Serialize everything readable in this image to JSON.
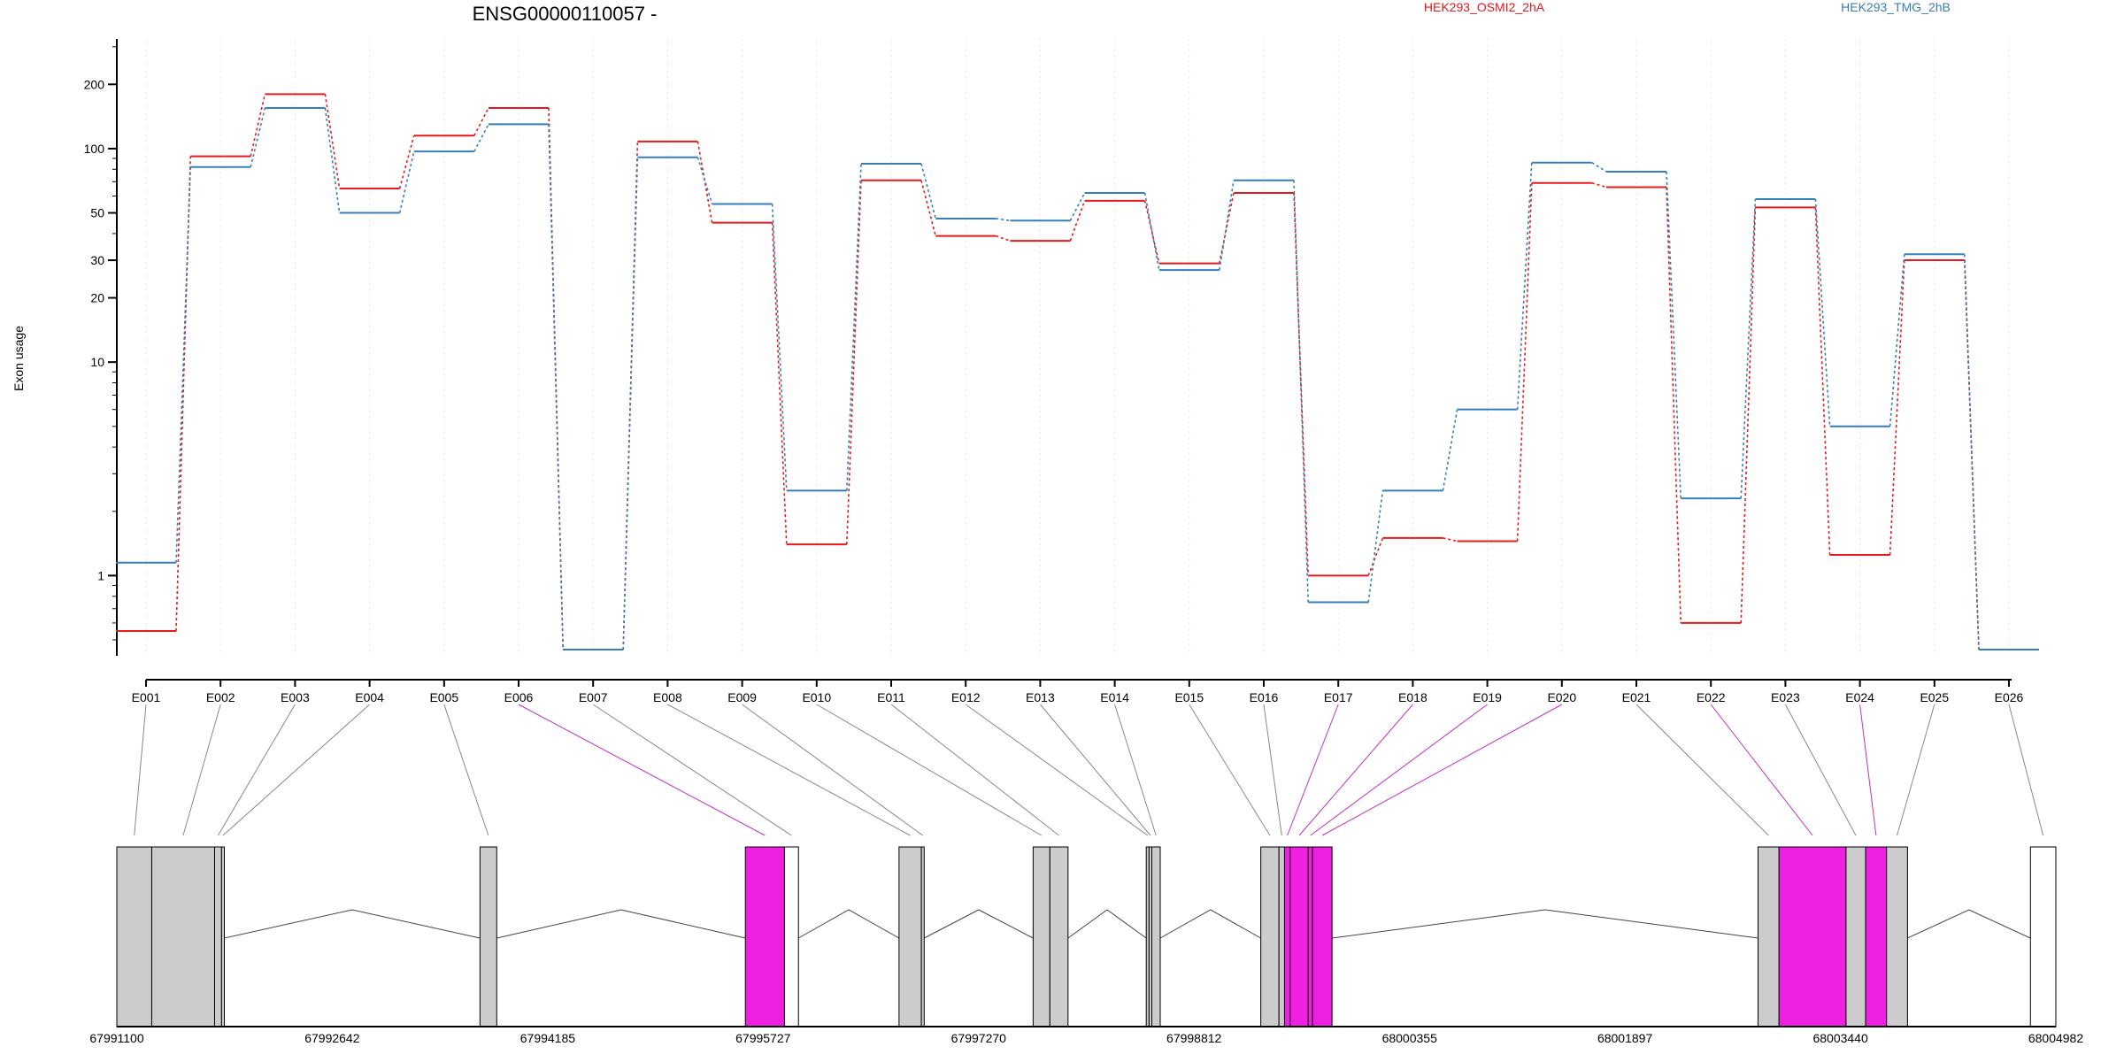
{
  "chart_data": {
    "type": "line",
    "title": "ENSG00000110057 -",
    "ylabel": "Exon usage",
    "xlabel": "",
    "y_scale": "log",
    "yticks": [
      1,
      10,
      20,
      30,
      50,
      100,
      200
    ],
    "ylim": [
      0.4,
      300
    ],
    "grid": "vertical dotted",
    "legend_placement": "top",
    "categories": [
      "E001",
      "E002",
      "E003",
      "E004",
      "E005",
      "E006",
      "E007",
      "E008",
      "E009",
      "E010",
      "E011",
      "E012",
      "E013",
      "E014",
      "E015",
      "E016",
      "E017",
      "E018",
      "E019",
      "E020",
      "E021",
      "E022",
      "E023",
      "E024",
      "E025",
      "E026"
    ],
    "series": [
      {
        "name": "HEK293_OSMI2_2hA",
        "color": "#e41a1c",
        "values": [
          0.55,
          92,
          180,
          65,
          115,
          155,
          0.45,
          108,
          45,
          1.4,
          71,
          39,
          37,
          57,
          29,
          62,
          1.0,
          1.5,
          1.45,
          69,
          66,
          0.6,
          53,
          1.25,
          30,
          0.45
        ]
      },
      {
        "name": "HEK293_TMG_2hB",
        "color": "#377eb8",
        "values": [
          1.15,
          82,
          155,
          50,
          97,
          130,
          0.45,
          91,
          55,
          2.5,
          85,
          47,
          46,
          62,
          27,
          71,
          0.75,
          2.5,
          6.0,
          86,
          78,
          2.3,
          58,
          5.0,
          32,
          0.45
        ]
      }
    ],
    "gene_model": {
      "coordinate_ticks": [
        "67991100",
        "67992642",
        "67994185",
        "67995727",
        "67997270",
        "67998812",
        "68000355",
        "68001897",
        "68003440",
        "68004982"
      ],
      "coord_range": [
        67991100,
        68004982
      ],
      "exons": [
        {
          "id": "E001",
          "start": 67991100,
          "end": 67991350,
          "fill": "#cccccc"
        },
        {
          "id": "E002",
          "start": 67991350,
          "end": 67991800,
          "fill": "#cccccc"
        },
        {
          "id": "E003",
          "start": 67991800,
          "end": 67991850,
          "fill": "#cccccc"
        },
        {
          "id": "E004",
          "start": 67991850,
          "end": 67991870,
          "fill": "#cccccc"
        },
        {
          "id": "E005",
          "start": 67993700,
          "end": 67993820,
          "fill": "#cccccc"
        },
        {
          "id": "E006",
          "start": 67995600,
          "end": 67995880,
          "fill": "#f020e0"
        },
        {
          "id": "E007",
          "start": 67995880,
          "end": 67995980,
          "fill": "#ffffff"
        },
        {
          "id": "E008",
          "start": 67996700,
          "end": 67996860,
          "fill": "#cccccc"
        },
        {
          "id": "E009",
          "start": 67996860,
          "end": 67996880,
          "fill": "#cccccc"
        },
        {
          "id": "E010",
          "start": 67997660,
          "end": 67997780,
          "fill": "#cccccc"
        },
        {
          "id": "E011",
          "start": 67997780,
          "end": 67997910,
          "fill": "#cccccc"
        },
        {
          "id": "E012",
          "start": 67998470,
          "end": 67998490,
          "fill": "#cccccc"
        },
        {
          "id": "E013",
          "start": 67998490,
          "end": 67998510,
          "fill": "#cccccc"
        },
        {
          "id": "E014",
          "start": 67998510,
          "end": 67998570,
          "fill": "#cccccc"
        },
        {
          "id": "E015",
          "start": 67999290,
          "end": 67999420,
          "fill": "#cccccc"
        },
        {
          "id": "E016",
          "start": 67999420,
          "end": 67999460,
          "fill": "#cccccc"
        },
        {
          "id": "E017",
          "start": 67999460,
          "end": 67999500,
          "fill": "#f020e0"
        },
        {
          "id": "E018",
          "start": 67999500,
          "end": 67999630,
          "fill": "#f020e0"
        },
        {
          "id": "E019",
          "start": 67999630,
          "end": 67999660,
          "fill": "#f020e0"
        },
        {
          "id": "E020",
          "start": 67999660,
          "end": 67999800,
          "fill": "#f020e0"
        },
        {
          "id": "E021",
          "start": 68002850,
          "end": 68003000,
          "fill": "#cccccc"
        },
        {
          "id": "E022",
          "start": 68003000,
          "end": 68003480,
          "fill": "#f020e0"
        },
        {
          "id": "E023",
          "start": 68003480,
          "end": 68003620,
          "fill": "#cccccc"
        },
        {
          "id": "E024",
          "start": 68003620,
          "end": 68003770,
          "fill": "#f020e0"
        },
        {
          "id": "E025",
          "start": 68003770,
          "end": 68003920,
          "fill": "#cccccc"
        },
        {
          "id": "E026",
          "start": 68004800,
          "end": 68004982,
          "fill": "#ffffff"
        }
      ],
      "connector_colors": {
        "default": "#888888",
        "highlight": "#c030c0"
      },
      "highlighted_exons": [
        "E006",
        "E017",
        "E018",
        "E019",
        "E020",
        "E022",
        "E024"
      ]
    }
  }
}
